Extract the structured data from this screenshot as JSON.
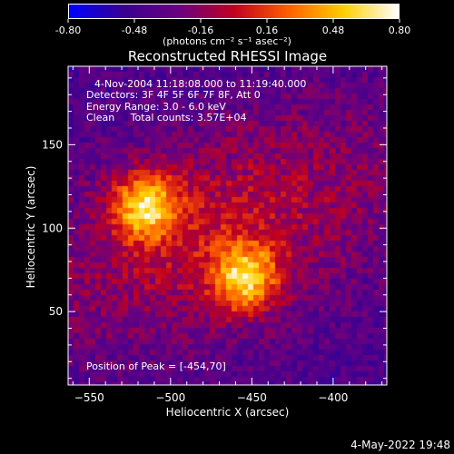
{
  "colorbar": {
    "ticks": [
      "-0.80",
      "-0.48",
      "-0.16",
      "0.16",
      "0.48",
      "0.80"
    ],
    "unit_label": "(photons cm⁻² s⁻¹ asec⁻²)",
    "colors": [
      "#0000ff",
      "#3a0090",
      "#6a0080",
      "#c00020",
      "#ff6000",
      "#ffd000",
      "#ffffff"
    ]
  },
  "chart_data": {
    "type": "heatmap",
    "title": "Reconstructed RHESSI Image",
    "xlabel": "Heliocentric X (arcsec)",
    "ylabel": "Heliocentric Y (arcsec)",
    "xlim": [
      -563,
      -367
    ],
    "ylim": [
      6,
      197
    ],
    "xticks": [
      -550,
      -500,
      -450,
      -400
    ],
    "yticks": [
      50,
      100,
      150
    ],
    "peak": [
      -454,
      70
    ],
    "peaks_approx": [
      {
        "x": -515,
        "y": 113,
        "value": 0.8
      },
      {
        "x": -454,
        "y": 70,
        "value": 0.8
      }
    ],
    "annotations": [
      "4-Nov-2004 11:18:08.000 to 11:19:40.000",
      "Detectors: 3F 4F 5F 6F 7F 8F, Att 0",
      "Energy Range: 3.0 - 6.0 keV",
      "Clean     Total counts: 3.57E+04"
    ],
    "peak_label": "Position of Peak = [-454,70]"
  },
  "footer": {
    "timestamp": "4-May-2022 19:48"
  }
}
